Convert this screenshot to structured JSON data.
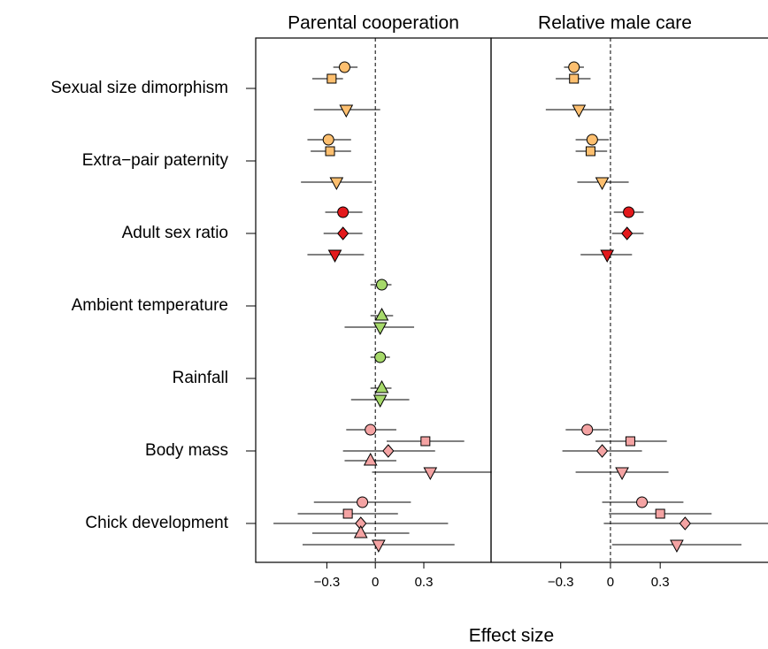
{
  "figure": {
    "xlabel": "Effect size",
    "categories": [
      "Sexual size dimorphism",
      "Extra−pair paternity",
      "Adult sex ratio",
      "Ambient temperature",
      "Rainfall",
      "Body mass",
      "Chick development"
    ],
    "category_colors": [
      "#fdbf6f",
      "#fdbf6f",
      "#e3191c",
      "#a6d96a",
      "#a6d96a",
      "#f4a3a3",
      "#f4a3a3"
    ]
  },
  "chart_data": [
    {
      "type": "forest",
      "title": "Parental cooperation",
      "xlim": [
        -0.74,
        0.716
      ],
      "xticks": [
        {
          "value": -0.3,
          "label": "−0.3"
        },
        0,
        0.3
      ],
      "reference_line": 0,
      "series": [
        {
          "marker": "circle",
          "values": [
            -0.19,
            -0.29,
            -0.2,
            0.04,
            0.03,
            -0.03,
            -0.08
          ],
          "lower": [
            -0.26,
            -0.42,
            -0.31,
            -0.03,
            -0.03,
            -0.18,
            -0.38
          ],
          "upper": [
            -0.11,
            -0.15,
            -0.08,
            0.1,
            0.09,
            0.13,
            0.22
          ]
        },
        {
          "marker": "square",
          "values": [
            -0.27,
            -0.28,
            null,
            null,
            null,
            0.31,
            -0.17
          ],
          "lower": [
            -0.39,
            -0.4,
            null,
            null,
            null,
            0.07,
            -0.48
          ],
          "upper": [
            -0.2,
            -0.15,
            null,
            null,
            null,
            0.55,
            0.14
          ]
        },
        {
          "marker": "diamond",
          "values": [
            null,
            null,
            -0.2,
            null,
            null,
            0.08,
            -0.09
          ],
          "lower": [
            null,
            null,
            -0.32,
            null,
            null,
            -0.2,
            -0.63
          ],
          "upper": [
            null,
            null,
            -0.08,
            null,
            null,
            0.37,
            0.45
          ]
        },
        {
          "marker": "triangle-up",
          "values": [
            null,
            null,
            null,
            0.04,
            0.04,
            -0.03,
            -0.09
          ],
          "lower": [
            null,
            null,
            null,
            -0.03,
            -0.03,
            -0.19,
            -0.39
          ],
          "upper": [
            null,
            null,
            null,
            0.11,
            0.1,
            0.13,
            0.21
          ]
        },
        {
          "marker": "triangle-down",
          "values": [
            -0.18,
            -0.24,
            -0.25,
            0.03,
            0.03,
            0.34,
            0.02
          ],
          "lower": [
            -0.38,
            -0.46,
            -0.42,
            -0.19,
            -0.15,
            -0.02,
            -0.45
          ],
          "upper": [
            0.03,
            -0.02,
            -0.07,
            0.24,
            0.21,
            0.72,
            0.49
          ]
        }
      ]
    },
    {
      "type": "forest",
      "title": "Relative male care",
      "xlim": [
        -0.72,
        0.95
      ],
      "xticks": [
        {
          "value": -0.3,
          "label": "−0.3"
        },
        0,
        0.3
      ],
      "reference_line": 0,
      "series": [
        {
          "marker": "circle",
          "values": [
            -0.22,
            -0.11,
            0.11,
            null,
            null,
            -0.14,
            0.19
          ],
          "lower": [
            -0.28,
            -0.21,
            0.02,
            null,
            null,
            -0.27,
            -0.05
          ],
          "upper": [
            -0.16,
            -0.01,
            0.2,
            null,
            null,
            -0.01,
            0.44
          ]
        },
        {
          "marker": "square",
          "values": [
            -0.22,
            -0.12,
            null,
            null,
            null,
            0.12,
            0.3
          ],
          "lower": [
            -0.33,
            -0.21,
            null,
            null,
            null,
            -0.09,
            -0.01
          ],
          "upper": [
            -0.12,
            -0.02,
            null,
            null,
            null,
            0.34,
            0.61
          ]
        },
        {
          "marker": "diamond",
          "values": [
            null,
            null,
            0.1,
            null,
            null,
            -0.05,
            0.45
          ],
          "lower": [
            null,
            null,
            0.01,
            null,
            null,
            -0.29,
            -0.04
          ],
          "upper": [
            null,
            null,
            0.2,
            null,
            null,
            0.19,
            0.95
          ]
        },
        {
          "marker": "triangle-up",
          "values": [
            null,
            null,
            null,
            null,
            null,
            null,
            null
          ],
          "lower": [
            null,
            null,
            null,
            null,
            null,
            null,
            null
          ],
          "upper": [
            null,
            null,
            null,
            null,
            null,
            null,
            null
          ]
        },
        {
          "marker": "triangle-down",
          "values": [
            -0.19,
            -0.05,
            -0.02,
            null,
            null,
            0.07,
            0.4
          ],
          "lower": [
            -0.39,
            -0.2,
            -0.18,
            null,
            null,
            -0.21,
            0.01
          ],
          "upper": [
            0.02,
            0.11,
            0.13,
            null,
            null,
            0.35,
            0.79
          ]
        }
      ]
    }
  ]
}
